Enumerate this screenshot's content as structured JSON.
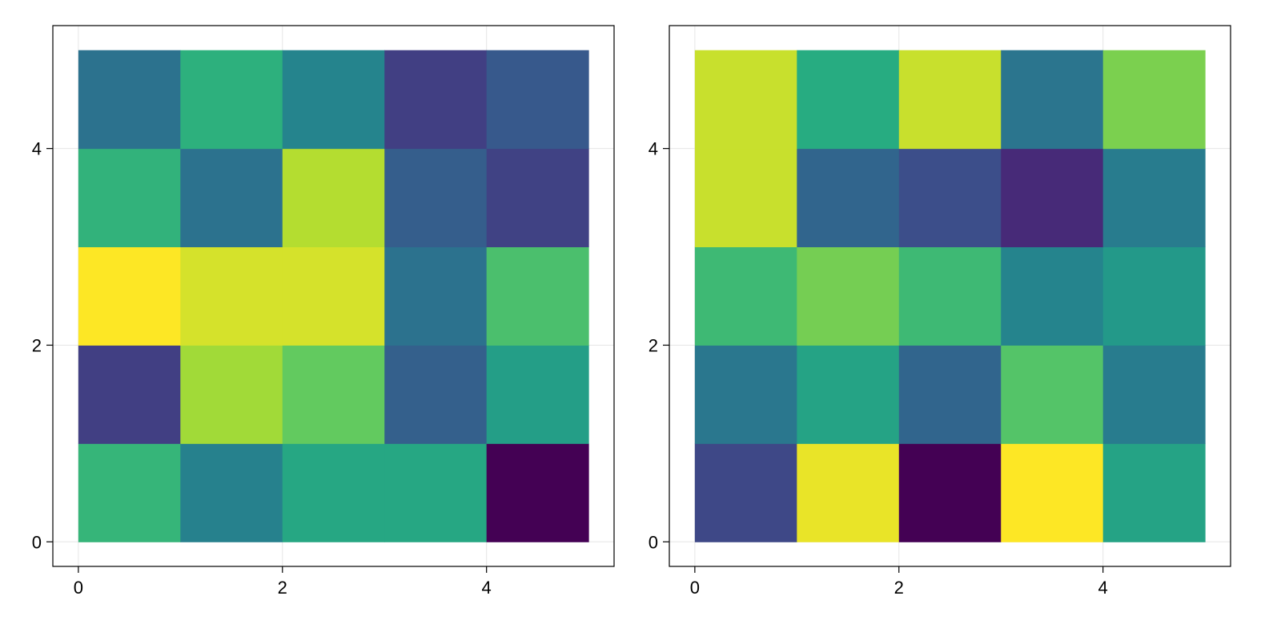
{
  "chart_data": [
    {
      "type": "heatmap",
      "title": "",
      "xlabel": "",
      "ylabel": "",
      "xlim": [
        -0.25,
        5.25
      ],
      "ylim": [
        -0.25,
        5.25
      ],
      "grid": true,
      "colormap": "viridis",
      "xticks": [
        {
          "value": 0,
          "label": "0"
        },
        {
          "value": 2,
          "label": "2"
        },
        {
          "value": 4,
          "label": "4"
        }
      ],
      "yticks": [
        {
          "value": 0,
          "label": "0"
        },
        {
          "value": 2,
          "label": "2"
        },
        {
          "value": 4,
          "label": "4"
        }
      ],
      "x_edges": [
        0,
        1,
        2,
        3,
        4,
        5
      ],
      "y_edges": [
        0,
        1,
        2,
        3,
        4,
        5
      ],
      "z_rows_bottom_to_top": [
        [
          0.66,
          0.44,
          0.6,
          0.6,
          0.0
        ],
        [
          0.19,
          0.86,
          0.76,
          0.31,
          0.56
        ],
        [
          1.0,
          0.94,
          0.94,
          0.38,
          0.71
        ],
        [
          0.65,
          0.38,
          0.89,
          0.3,
          0.2
        ],
        [
          0.38,
          0.64,
          0.45,
          0.19,
          0.28
        ]
      ]
    },
    {
      "type": "heatmap",
      "title": "",
      "xlabel": "",
      "ylabel": "",
      "xlim": [
        -0.25,
        5.25
      ],
      "ylim": [
        -0.25,
        5.25
      ],
      "grid": true,
      "colormap": "viridis",
      "xticks": [
        {
          "value": 0,
          "label": "0"
        },
        {
          "value": 2,
          "label": "2"
        },
        {
          "value": 4,
          "label": "4"
        }
      ],
      "yticks": [
        {
          "value": 0,
          "label": "0"
        },
        {
          "value": 2,
          "label": "2"
        },
        {
          "value": 4,
          "label": "4"
        }
      ],
      "x_edges": [
        0,
        1,
        2,
        3,
        4,
        5
      ],
      "y_edges": [
        0,
        1,
        2,
        3,
        4,
        5
      ],
      "z_rows_bottom_to_top": [
        [
          0.22,
          0.97,
          0.0,
          1.0,
          0.58
        ],
        [
          0.4,
          0.58,
          0.33,
          0.73,
          0.42
        ],
        [
          0.68,
          0.79,
          0.68,
          0.45,
          0.54
        ],
        [
          0.92,
          0.33,
          0.24,
          0.12,
          0.42
        ],
        [
          0.92,
          0.62,
          0.92,
          0.39,
          0.8
        ]
      ]
    }
  ]
}
